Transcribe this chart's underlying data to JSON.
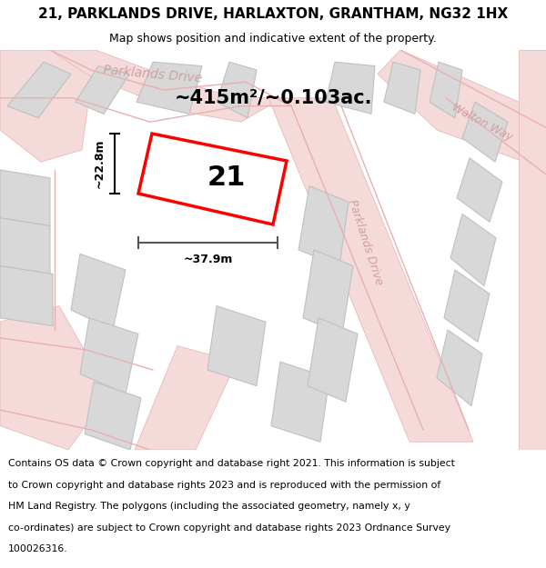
{
  "title": "21, PARKLANDS DRIVE, HARLAXTON, GRANTHAM, NG32 1HX",
  "subtitle": "Map shows position and indicative extent of the property.",
  "footer_lines": [
    "Contains OS data © Crown copyright and database right 2021. This information is subject",
    "to Crown copyright and database rights 2023 and is reproduced with the permission of",
    "HM Land Registry. The polygons (including the associated geometry, namely x, y",
    "co-ordinates) are subject to Crown copyright and database rights 2023 Ordnance Survey",
    "100026316."
  ],
  "bg_color": "#f0e8e5",
  "road_color": "#e8b0b0",
  "road_fill": "#f5dada",
  "block_fill": "#d8d8d8",
  "block_edge": "#c0c0c0",
  "highlight_fill": "#ffffff",
  "highlight_edge": "#ff0000",
  "area_text": "~415m²/~0.103ac.",
  "plot_number": "21",
  "dim_width": "~37.9m",
  "dim_height": "~22.8m",
  "road_label_color": "#d0a0a0",
  "title_fontsize": 11,
  "subtitle_fontsize": 9,
  "footer_fontsize": 7.8,
  "road_label_fontsize": 10,
  "area_fontsize": 15,
  "plot_fontsize": 22,
  "dim_fontsize": 9
}
